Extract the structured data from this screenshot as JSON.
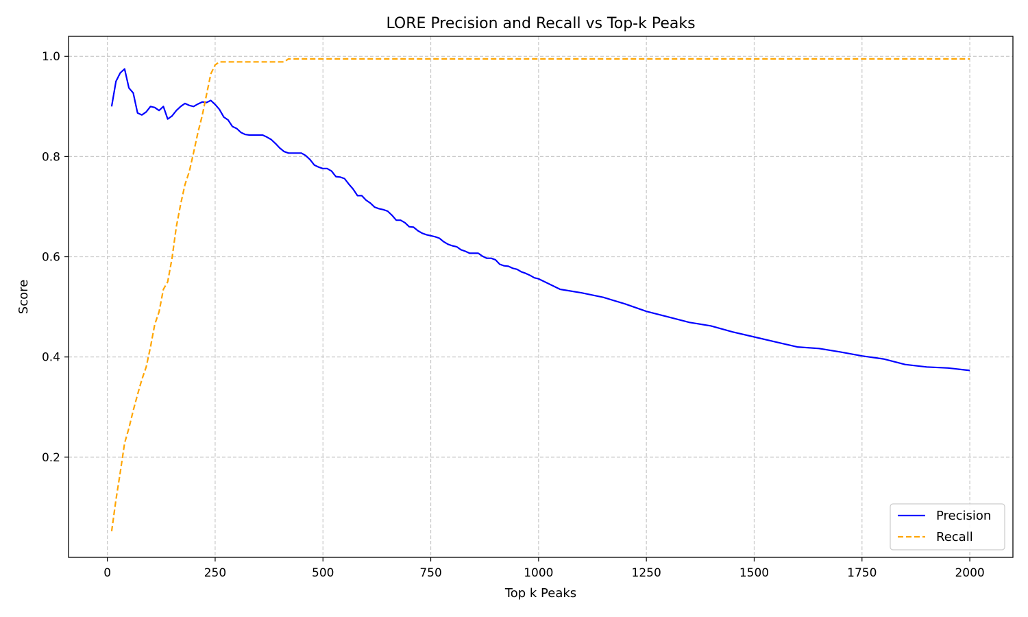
{
  "chart_data": {
    "type": "line",
    "title": "LORE Precision and Recall vs Top-k Peaks",
    "xlabel": "Top k Peaks",
    "ylabel": "Score",
    "xlim": [
      -90,
      2100
    ],
    "ylim": [
      0.0,
      1.04
    ],
    "xticks": [
      0,
      250,
      500,
      750,
      1000,
      1250,
      1500,
      1750,
      2000
    ],
    "xtick_labels": [
      "0",
      "250",
      "500",
      "750",
      "1000",
      "1250",
      "1500",
      "1750",
      "2000"
    ],
    "yticks": [
      0.2,
      0.4,
      0.6,
      0.8,
      1.0
    ],
    "ytick_labels": [
      "0.2",
      "0.4",
      "0.6",
      "0.8",
      "1.0"
    ],
    "grid": true,
    "legend_position": "lower-right",
    "series": [
      {
        "name": "Precision",
        "color": "#0000ff",
        "style": "solid",
        "x": [
          10,
          20,
          30,
          40,
          50,
          60,
          70,
          80,
          90,
          100,
          110,
          120,
          130,
          140,
          150,
          160,
          170,
          180,
          190,
          200,
          210,
          220,
          230,
          240,
          250,
          260,
          270,
          280,
          290,
          300,
          310,
          320,
          330,
          340,
          350,
          360,
          370,
          380,
          390,
          400,
          410,
          420,
          430,
          440,
          450,
          460,
          470,
          480,
          490,
          500,
          510,
          520,
          530,
          540,
          550,
          560,
          570,
          580,
          590,
          600,
          610,
          620,
          630,
          640,
          650,
          660,
          670,
          680,
          690,
          700,
          710,
          720,
          730,
          740,
          750,
          760,
          770,
          780,
          790,
          800,
          810,
          820,
          830,
          840,
          850,
          860,
          870,
          880,
          890,
          900,
          910,
          920,
          930,
          940,
          950,
          960,
          970,
          980,
          990,
          1000,
          1050,
          1100,
          1150,
          1200,
          1250,
          1300,
          1350,
          1400,
          1450,
          1500,
          1550,
          1600,
          1650,
          1700,
          1750,
          1800,
          1850,
          1900,
          1950,
          2000
        ],
        "values": [
          0.9,
          0.95,
          0.967,
          0.975,
          0.937,
          0.927,
          0.887,
          0.883,
          0.889,
          0.9,
          0.898,
          0.892,
          0.9,
          0.875,
          0.881,
          0.892,
          0.9,
          0.906,
          0.902,
          0.9,
          0.905,
          0.909,
          0.908,
          0.912,
          0.904,
          0.894,
          0.879,
          0.873,
          0.86,
          0.856,
          0.848,
          0.844,
          0.843,
          0.843,
          0.843,
          0.843,
          0.839,
          0.834,
          0.826,
          0.817,
          0.81,
          0.807,
          0.807,
          0.807,
          0.807,
          0.802,
          0.794,
          0.783,
          0.779,
          0.776,
          0.776,
          0.771,
          0.76,
          0.759,
          0.756,
          0.745,
          0.735,
          0.722,
          0.722,
          0.713,
          0.707,
          0.699,
          0.696,
          0.694,
          0.691,
          0.683,
          0.673,
          0.673,
          0.668,
          0.66,
          0.659,
          0.652,
          0.647,
          0.644,
          0.642,
          0.64,
          0.637,
          0.63,
          0.625,
          0.622,
          0.62,
          0.614,
          0.611,
          0.607,
          0.607,
          0.607,
          0.601,
          0.597,
          0.597,
          0.594,
          0.585,
          0.582,
          0.581,
          0.577,
          0.575,
          0.57,
          0.567,
          0.563,
          0.558,
          0.556,
          0.535,
          0.528,
          0.519,
          0.506,
          0.491,
          0.48,
          0.469,
          0.462,
          0.45,
          0.44,
          0.43,
          0.42,
          0.417,
          0.41,
          0.402,
          0.396,
          0.385,
          0.38,
          0.378,
          0.373
        ]
      },
      {
        "name": "Recall",
        "color": "#ffa500",
        "style": "dashed",
        "x": [
          10,
          20,
          30,
          40,
          50,
          60,
          70,
          80,
          90,
          100,
          110,
          120,
          130,
          140,
          150,
          160,
          170,
          180,
          190,
          200,
          210,
          220,
          230,
          240,
          250,
          260,
          270,
          280,
          300,
          350,
          400,
          410,
          420,
          500,
          750,
          1000,
          1250,
          1500,
          1750,
          2000
        ],
        "values": [
          0.052,
          0.115,
          0.17,
          0.228,
          0.258,
          0.293,
          0.325,
          0.355,
          0.38,
          0.42,
          0.465,
          0.49,
          0.535,
          0.55,
          0.597,
          0.66,
          0.705,
          0.744,
          0.77,
          0.808,
          0.848,
          0.882,
          0.924,
          0.965,
          0.983,
          0.989,
          0.989,
          0.989,
          0.989,
          0.989,
          0.989,
          0.989,
          0.995,
          0.995,
          0.995,
          0.995,
          0.995,
          0.995,
          0.995,
          0.995
        ]
      }
    ]
  }
}
